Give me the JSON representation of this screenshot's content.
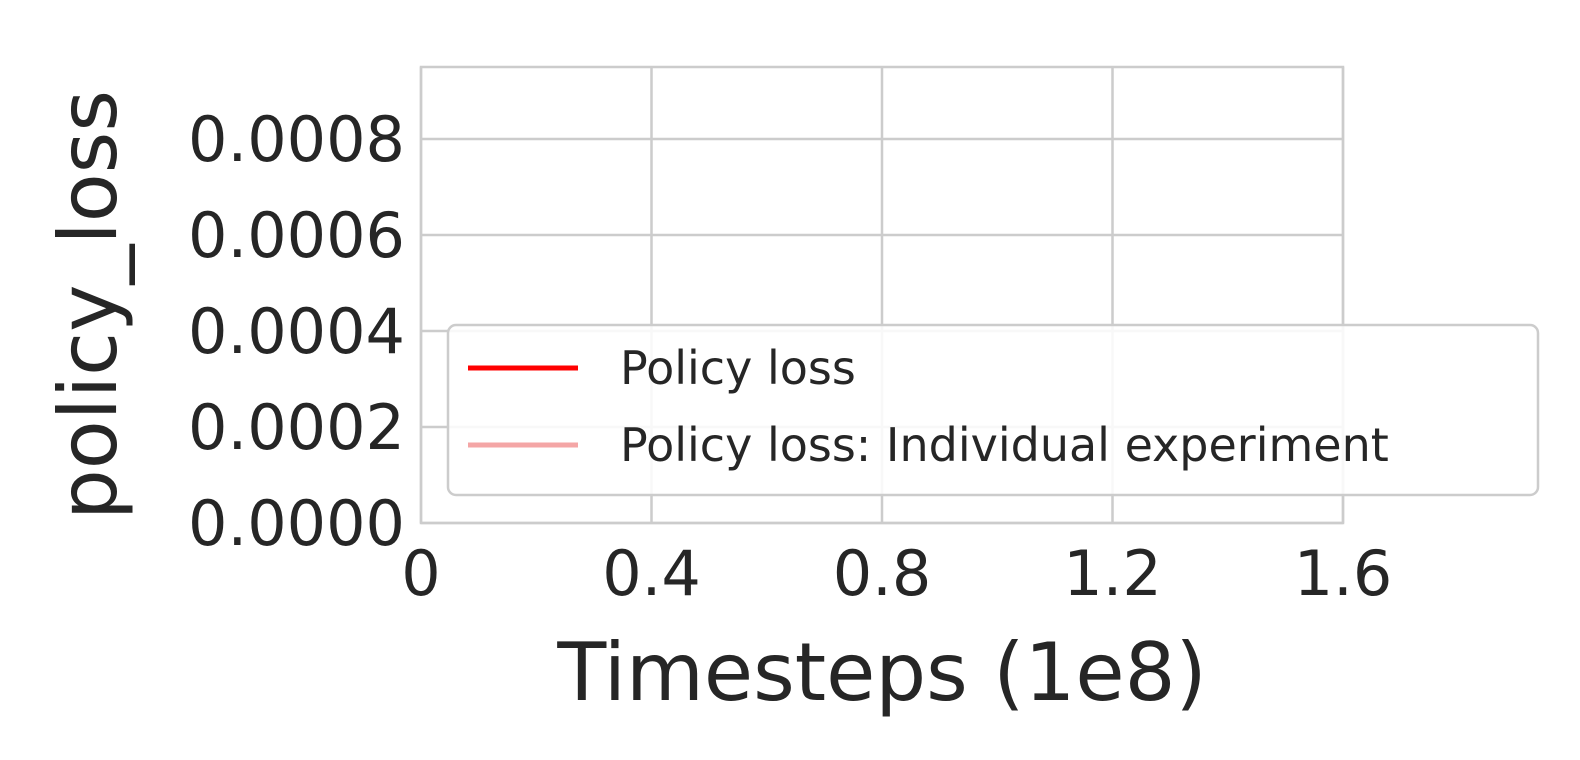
{
  "chart_data": {
    "type": "line",
    "xlabel": "Timesteps (1e8)",
    "ylabel": "policy_loss",
    "xlim": [
      0,
      1.6
    ],
    "ylim": [
      0,
      0.00095
    ],
    "x_ticks": [
      0,
      0.4,
      0.8,
      1.2,
      1.6
    ],
    "x_tick_labels": [
      "0",
      "0.4",
      "0.8",
      "1.2",
      "1.6"
    ],
    "y_ticks": [
      0,
      0.0002,
      0.0004,
      0.0006,
      0.0008
    ],
    "y_tick_labels": [
      "0.0000",
      "0.0002",
      "0.0004",
      "0.0006",
      "0.0008"
    ],
    "grid": true,
    "legend_position": "lower-right",
    "series": [
      {
        "name": "Policy loss",
        "color": "#ff0000",
        "x": [],
        "y": []
      },
      {
        "name": "Policy loss: Individual experiment",
        "color": "#f4a6a6",
        "x": [],
        "y": []
      }
    ]
  }
}
